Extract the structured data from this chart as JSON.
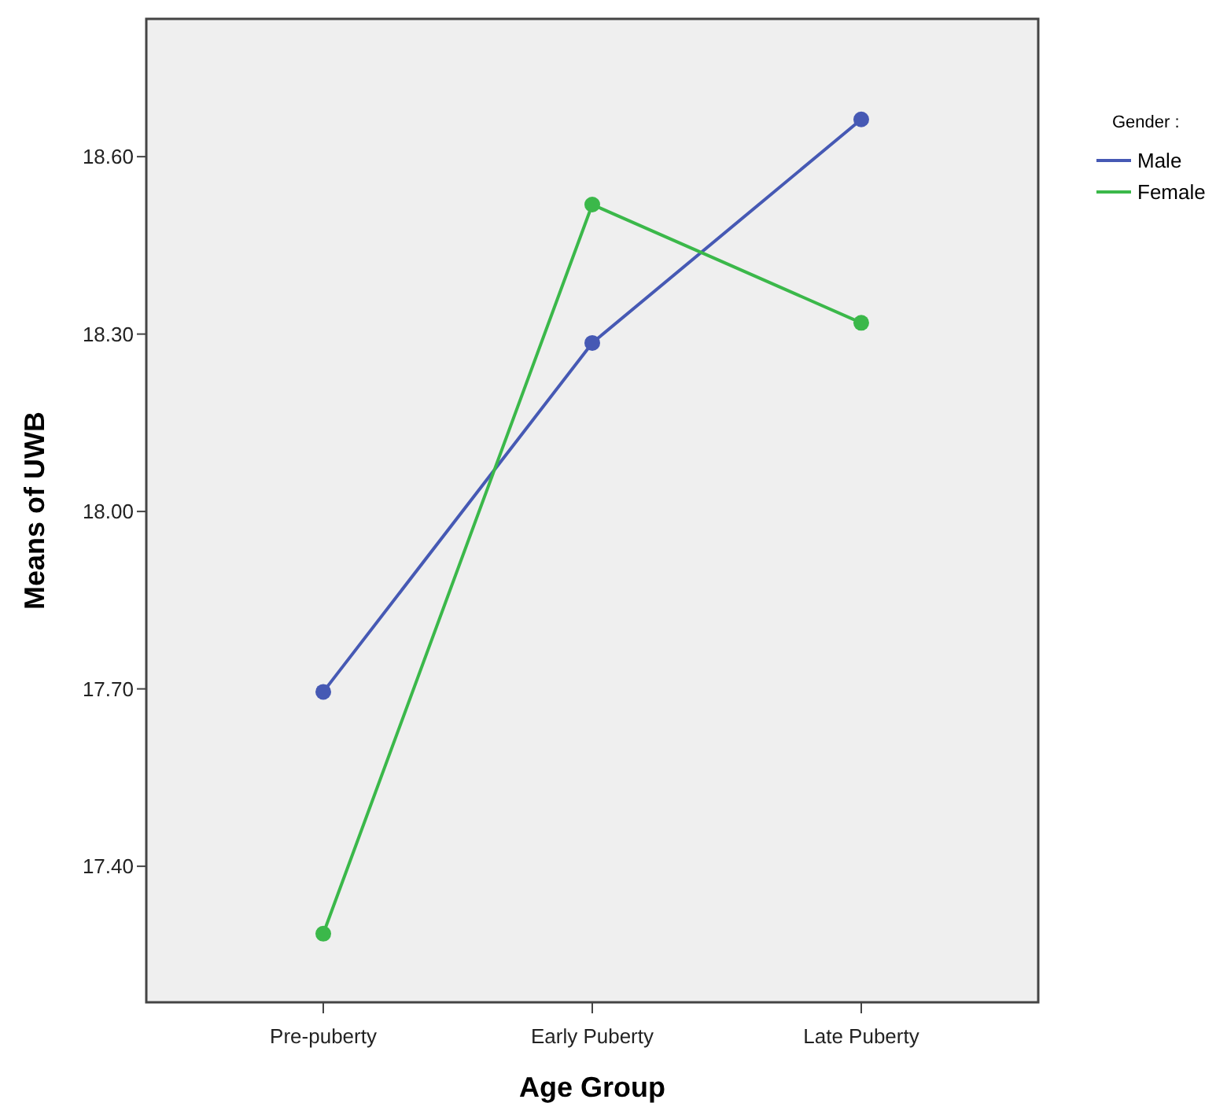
{
  "chart_data": {
    "type": "line",
    "xlabel": "Age Group",
    "ylabel": "Means of UWB",
    "legend_title": "Gender :",
    "categories": [
      "Pre-puberty",
      "Early Puberty",
      "Late Puberty"
    ],
    "series": [
      {
        "name": "Male",
        "color": "#4659b4",
        "values": [
          17.695,
          18.285,
          18.663
        ]
      },
      {
        "name": "Female",
        "color": "#3bb84a",
        "values": [
          17.286,
          18.519,
          18.319
        ]
      }
    ],
    "ylim": [
      17.17,
      18.833
    ],
    "yticks": [
      {
        "value": 17.4,
        "label": "17.40"
      },
      {
        "value": 17.7,
        "label": "17.70"
      },
      {
        "value": 18.0,
        "label": "18.00"
      },
      {
        "value": 18.3,
        "label": "18.30"
      },
      {
        "value": 18.6,
        "label": "18.60"
      }
    ],
    "grid": false,
    "legend": "top right",
    "marker": "circle",
    "line_style": "solid"
  }
}
